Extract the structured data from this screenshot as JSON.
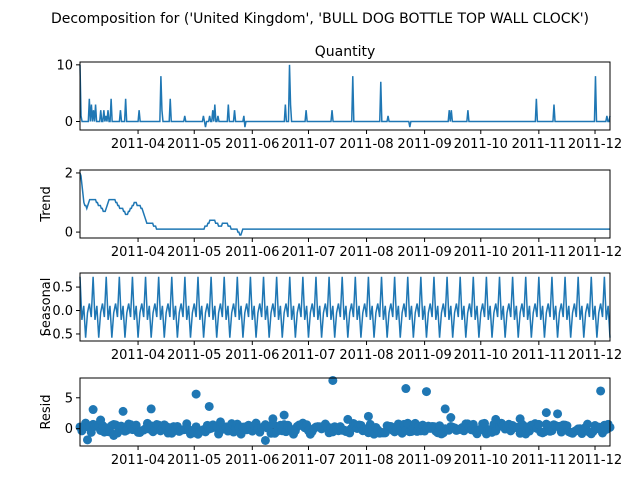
{
  "figure": {
    "suptitle": "Decomposition for ('United Kingdom', 'BULL DOG BOTTLE TOP WALL CLOCK')"
  },
  "colors": {
    "line": "#1f77b4",
    "axis": "#000000",
    "zero_line": "#000000"
  },
  "chart_data": [
    {
      "type": "line",
      "title": "Quantity",
      "ylabel": "",
      "x_start": "2011-03-01",
      "x_end": "2011-12-09",
      "xlim": [
        "2011-03-01",
        "2011-12-09"
      ],
      "ylim": [
        -1.5,
        10.5
      ],
      "yticks": [
        "0",
        "10"
      ],
      "xticks": [
        "2011-04",
        "2011-05",
        "2011-06",
        "2011-07",
        "2011-08",
        "2011-09",
        "2011-10",
        "2011-11",
        "2011-12"
      ],
      "grid": false,
      "values": [
        10,
        1,
        0,
        0,
        0,
        0,
        0,
        0,
        0,
        4,
        0,
        3,
        0,
        2,
        0,
        3,
        0,
        0,
        0,
        0,
        2,
        0,
        0,
        2,
        0,
        1,
        0,
        2,
        0,
        0,
        4,
        0,
        0,
        0,
        0,
        0,
        0,
        0,
        0,
        2,
        0,
        0,
        0,
        0,
        4,
        0,
        0,
        0,
        0,
        0,
        0,
        0,
        0,
        0,
        0,
        0,
        0,
        2,
        0,
        0,
        0,
        0,
        0,
        0,
        0,
        0,
        0,
        0,
        0,
        0,
        0,
        0,
        0,
        0,
        0,
        0,
        0,
        0,
        8,
        2,
        0,
        0,
        0,
        0,
        0,
        0,
        0,
        4,
        0,
        0,
        0,
        0,
        0,
        0,
        0,
        0,
        0,
        0,
        0,
        0,
        0,
        1,
        0,
        0,
        0,
        0,
        0,
        0,
        0,
        0,
        0,
        0,
        0,
        0,
        0,
        0,
        0,
        0,
        0,
        1,
        0,
        -1,
        0,
        0,
        0,
        1,
        0,
        0,
        2,
        0,
        3,
        0,
        0,
        1,
        0,
        0,
        0,
        0,
        0,
        0,
        0,
        0,
        0,
        3,
        0,
        0,
        0,
        0,
        0,
        2,
        0,
        0,
        0,
        0,
        0,
        0,
        0,
        0,
        1,
        -1,
        0,
        0,
        0,
        0,
        0,
        0,
        0,
        0,
        0,
        0,
        0,
        0,
        0,
        0,
        0,
        0,
        0,
        0,
        0,
        0,
        0,
        0,
        0,
        0,
        0,
        0,
        0,
        0,
        0,
        0,
        0,
        0,
        0,
        0,
        0,
        0,
        0,
        0,
        3,
        0,
        0,
        0,
        10,
        3,
        0,
        0,
        0,
        0,
        0,
        0,
        0,
        0,
        0,
        0,
        0,
        0,
        0,
        0,
        2,
        0,
        0,
        0,
        0,
        0,
        0,
        0,
        0,
        0,
        0,
        0,
        0,
        0,
        0,
        0,
        0,
        0,
        0,
        0,
        0,
        0,
        0,
        0,
        0,
        2,
        0,
        0,
        0,
        0,
        0,
        0,
        0,
        0,
        0,
        0,
        0,
        0,
        0,
        0,
        0,
        0,
        0,
        0,
        0,
        8,
        0,
        0,
        0,
        0,
        0,
        0,
        0,
        0,
        0,
        0,
        0,
        0,
        0,
        0,
        0,
        0,
        0,
        0,
        0,
        0,
        0,
        0,
        0,
        0,
        0,
        0,
        7,
        0,
        0,
        0,
        0,
        0,
        0,
        1,
        0,
        0,
        0,
        0,
        0,
        0,
        0,
        0,
        0,
        0,
        0,
        0,
        0,
        0,
        0,
        0,
        0,
        0,
        0,
        0,
        -1,
        0,
        0,
        0,
        0,
        0,
        0,
        0,
        0,
        0,
        0,
        0,
        0,
        0,
        0,
        0,
        0,
        0,
        0,
        0,
        0,
        0,
        0,
        0,
        0,
        0,
        0,
        0,
        0,
        0,
        0,
        0,
        0,
        0,
        0,
        0,
        0,
        0,
        2,
        0,
        2,
        0,
        0,
        0,
        0,
        0,
        0,
        0,
        0,
        0,
        0,
        0,
        0,
        0,
        0,
        0,
        2,
        0,
        0,
        0,
        0,
        0,
        0,
        0,
        0,
        0,
        0,
        0,
        0,
        0,
        0,
        0,
        0,
        0,
        0,
        0,
        0,
        0,
        0,
        0,
        0,
        0,
        0,
        0,
        0,
        0,
        0,
        0,
        0,
        0,
        0,
        0,
        0,
        0,
        0,
        0,
        0,
        0,
        0,
        0,
        0,
        0,
        0,
        0,
        0,
        0,
        0,
        0,
        0,
        0,
        0,
        0,
        0,
        0,
        0,
        0,
        0,
        0,
        0,
        0,
        0,
        0,
        4,
        0,
        0,
        0,
        0,
        0,
        0,
        0,
        0,
        0,
        0,
        0,
        0,
        0,
        0,
        0,
        0,
        3,
        0,
        0,
        0,
        0,
        0,
        0,
        0,
        0,
        0,
        0,
        0,
        0,
        0,
        0,
        0,
        0,
        0,
        0,
        0,
        0,
        0,
        0,
        0,
        0,
        0,
        0,
        0,
        0,
        0,
        0,
        0,
        0,
        0,
        0,
        0,
        0,
        0,
        0,
        0,
        8,
        0,
        0,
        0,
        0,
        0,
        0,
        0,
        0,
        0,
        0,
        1,
        0,
        0,
        1
      ]
    },
    {
      "type": "line",
      "title": "",
      "ylabel": "Trend",
      "x_start": "2011-03-01",
      "x_end": "2011-12-09",
      "xlim": [
        "2011-03-01",
        "2011-12-09"
      ],
      "ylim": [
        -0.2,
        2.1
      ],
      "yticks": [
        "0",
        "2"
      ],
      "xticks": [
        "2011-04",
        "2011-05",
        "2011-06",
        "2011-07",
        "2011-08",
        "2011-09",
        "2011-10",
        "2011-11",
        "2011-12"
      ],
      "grid": false,
      "values": [
        2,
        1.9,
        1.6,
        1.3,
        1,
        0.9,
        0.9,
        0.8,
        0.9,
        1,
        1.1,
        1.1,
        1.1,
        1.1,
        1.1,
        1.1,
        1.1,
        1,
        1,
        0.9,
        0.9,
        0.9,
        0.8,
        0.8,
        0.7,
        0.7,
        0.7,
        0.8,
        0.9,
        1,
        1.1,
        1.1,
        1.1,
        1.1,
        1.1,
        1.1,
        1.1,
        1,
        1,
        0.9,
        0.9,
        0.8,
        0.8,
        0.8,
        0.8,
        0.7,
        0.7,
        0.6,
        0.6,
        0.6,
        0.7,
        0.7,
        0.8,
        0.8,
        0.9,
        0.9,
        1,
        1,
        1,
        0.9,
        0.9,
        0.9,
        0.9,
        0.8,
        0.8,
        0.7,
        0.6,
        0.5,
        0.4,
        0.3,
        0.3,
        0.3,
        0.3,
        0.3,
        0.3,
        0.3,
        0.2,
        0.2,
        0.2,
        0.1,
        0.1,
        0.1,
        0.1,
        0.1,
        0.1,
        0.1,
        0.1,
        0.1,
        0.1,
        0.1,
        0.1,
        0.1,
        0.1,
        0.1,
        0.1,
        0.1,
        0.1,
        0.1,
        0.1,
        0.1,
        0.1,
        0.1,
        0.1,
        0.1,
        0.1,
        0.1,
        0.1,
        0.1,
        0.1,
        0.1,
        0.1,
        0.1,
        0.1,
        0.1,
        0.1,
        0.1,
        0.1,
        0.1,
        0.1,
        0.1,
        0.1,
        0.1,
        0.1,
        0.1,
        0.1,
        0.1,
        0.1,
        0.1,
        0.1,
        0.2,
        0.2,
        0.2,
        0.3,
        0.3,
        0.4,
        0.4,
        0.4,
        0.4,
        0.4,
        0.4,
        0.3,
        0.3,
        0.3,
        0.2,
        0.2,
        0.2,
        0.2,
        0.3,
        0.3,
        0.3,
        0.3,
        0.3,
        0.3,
        0.2,
        0.2,
        0.2,
        0.1,
        0.1,
        0.1,
        0.1,
        0.1,
        0.1,
        0.1,
        0,
        0,
        -0.1,
        -0.1,
        0,
        0.1,
        0.1,
        0.1,
        0.1,
        0.1,
        0.1,
        0.1,
        0.1,
        0.1,
        0.1,
        0.1,
        0.1,
        0.1,
        0.1,
        0.1,
        0.1,
        0.1,
        0.1,
        0.1,
        0.1,
        0.1,
        0.1,
        0.1,
        0.1,
        0.1,
        0.1,
        0.1,
        0.1,
        0.1,
        0.1,
        0.1,
        0.1,
        0.1,
        0.1,
        0.1,
        0.1,
        0.1,
        0.1,
        0.1,
        0.1,
        0.1,
        0.1,
        0.1,
        0.1,
        0.1,
        0.1,
        0.1,
        0.1,
        0.1,
        0.1,
        0.1,
        0.1,
        0.1,
        0.1,
        0.1,
        0.1,
        0.1,
        0.1,
        0.1,
        0.1,
        0.1,
        0.1,
        0.1,
        0.1,
        0.1,
        0.1,
        0.1,
        0.1,
        0.1,
        0.1,
        0.1,
        0.1,
        0.1,
        0.1,
        0.1,
        0.1,
        0.1,
        0.1,
        0.1,
        0.1,
        0.1,
        0.1,
        0.1,
        0.1,
        0.1,
        0.1,
        0.1,
        0.1,
        0.1,
        0.1,
        0.1,
        0.1,
        0.1,
        0.1,
        0.1,
        0.1,
        0.1,
        0.1,
        0.1,
        0.1,
        0.1,
        0.1,
        0.1,
        0.1,
        0.1,
        0.1,
        0.1,
        0.1,
        0.1,
        0.1,
        0.1,
        0.1,
        0.1,
        0.1,
        0.1,
        0.1,
        0.1,
        0.1,
        0.1,
        0.1,
        0.1,
        0.1,
        0.1,
        0.1,
        0.1,
        0.1,
        0.1,
        0.1,
        0.1,
        0.1,
        0.1,
        0.1,
        0.1,
        0.1,
        0.1,
        0.1,
        0.1,
        0.1,
        0.1,
        0.1,
        0.1,
        0.1,
        0.1,
        0.1,
        0.1,
        0.1,
        0.1,
        0.1,
        0.1,
        0.1,
        0.1,
        0.1,
        0.1,
        0.1,
        0.1,
        0.1,
        0.1,
        0.1,
        0.1,
        0.1,
        0.1,
        0.1,
        0.1,
        0.1,
        0.1,
        0.1,
        0.1,
        0.1,
        0.1,
        0.1,
        0.1,
        0.1,
        0.1,
        0.1,
        0.1,
        0.1,
        0.1,
        0.1,
        0.1,
        0.1,
        0.1,
        0.1,
        0.1,
        0.1,
        0.1,
        0.1,
        0.1,
        0.1,
        0.1,
        0.1,
        0.1,
        0.1,
        0.1,
        0.1,
        0.1,
        0.1,
        0.1,
        0.1,
        0.1,
        0.1,
        0.1,
        0.1,
        0.1,
        0.1,
        0.1,
        0.1,
        0.1,
        0.1,
        0.1,
        0.1,
        0.1,
        0.1,
        0.1,
        0.1,
        0.1,
        0.1,
        0.1,
        0.1,
        0.1,
        0.1,
        0.1,
        0.1,
        0.1,
        0.1,
        0.1,
        0.1,
        0.1,
        0.1,
        0.1,
        0.1,
        0.1,
        0.1,
        0.1,
        0.1,
        0.1,
        0.1,
        0.1,
        0.1,
        0.1,
        0.1,
        0.1,
        0.1,
        0.1,
        0.1,
        0.1,
        0.1,
        0.1,
        0.1,
        0.1,
        0.1,
        0.1,
        0.1,
        0.1,
        0.1,
        0.1,
        0.1,
        0.1,
        0.1,
        0.1,
        0.1,
        0.1,
        0.1,
        0.1,
        0.1,
        0.1,
        0.1,
        0.1,
        0.1,
        0.1,
        0.1,
        0.1,
        0.1,
        0.1,
        0.1,
        0.1,
        0.1,
        0.1,
        0.1,
        0.1,
        0.1,
        0.1,
        0.1,
        0.1,
        0.1,
        0.1,
        0.1,
        0.1,
        0.1,
        0.1,
        0.1,
        0.1,
        0.1,
        0.1,
        0.1,
        0.1,
        0.1,
        0.1,
        0.1,
        0.1,
        0.1,
        0.1,
        0.1,
        0.1,
        0.1,
        0.1,
        0.1,
        0.1,
        0.1,
        0.1,
        0.1,
        0.1,
        0.1,
        0.1,
        0.1,
        0.1,
        0.1,
        0.1,
        0.1,
        0.1,
        0.1,
        0.1,
        0.1,
        0.1,
        0.1,
        0.1,
        0.1,
        0.1,
        0.1,
        0.1,
        0.1,
        0.1,
        0.1,
        0.1,
        0.1,
        0.1,
        0.1,
        0.1,
        0.1,
        0.1,
        0.1,
        0.1,
        0.1,
        0.1,
        0.1,
        0.1,
        0.1,
        0.1,
        0.1,
        0.1,
        0.1,
        0.1,
        0.1,
        0.1,
        0.1,
        0.1,
        0.1,
        0.1,
        0.1,
        0.1,
        0.1,
        0.1,
        0.1,
        0.1,
        0.1,
        0.1,
        0.1,
        0.1,
        0.1,
        0.1,
        0.1,
        0.1,
        0.1,
        0.1,
        0.1,
        0.1,
        0.1,
        0.1,
        0.1,
        0.1,
        0.1
      ]
    },
    {
      "type": "line",
      "title": "",
      "ylabel": "Seasonal",
      "x_start": "2011-03-01",
      "x_end": "2011-12-09",
      "xlim": [
        "2011-03-01",
        "2011-12-09"
      ],
      "ylim": [
        -0.65,
        0.8
      ],
      "yticks": [
        "0.5",
        "0.0",
        "−0.5"
      ],
      "ytick_values": [
        0.5,
        0.0,
        -0.5
      ],
      "xticks": [
        "2011-04",
        "2011-05",
        "2011-06",
        "2011-07",
        "2011-08",
        "2011-09",
        "2011-10",
        "2011-11",
        "2011-12"
      ],
      "grid": false,
      "period": 7,
      "pattern": [
        0.72,
        -0.2,
        0.1,
        -0.58,
        -0.05,
        0.15,
        -0.14
      ]
    },
    {
      "type": "scatter",
      "title": "",
      "ylabel": "Resid",
      "x_start": "2011-03-01",
      "x_end": "2011-12-09",
      "xlim": [
        "2011-03-01",
        "2011-12-09"
      ],
      "ylim": [
        -2.8,
        8.2
      ],
      "yticks": [
        "5",
        "0"
      ],
      "ytick_values": [
        5,
        0
      ],
      "xticks": [
        "2011-04",
        "2011-05",
        "2011-06",
        "2011-07",
        "2011-08",
        "2011-09",
        "2011-10",
        "2011-11",
        "2011-12"
      ],
      "grid": false,
      "zero_line": true,
      "outliers": [
        {
          "date": "2011-03-05",
          "value": -1.8
        },
        {
          "date": "2011-03-08",
          "value": 3.1
        },
        {
          "date": "2011-03-12",
          "value": 1.4
        },
        {
          "date": "2011-03-19",
          "value": -1.1
        },
        {
          "date": "2011-03-24",
          "value": 2.8
        },
        {
          "date": "2011-04-08",
          "value": 3.2
        },
        {
          "date": "2011-05-02",
          "value": 5.6
        },
        {
          "date": "2011-05-09",
          "value": 3.6
        },
        {
          "date": "2011-05-15",
          "value": 1.1
        },
        {
          "date": "2011-06-08",
          "value": -1.9
        },
        {
          "date": "2011-06-12",
          "value": 1.6
        },
        {
          "date": "2011-06-18",
          "value": 2.2
        },
        {
          "date": "2011-07-14",
          "value": 7.8
        },
        {
          "date": "2011-07-22",
          "value": 1.5
        },
        {
          "date": "2011-08-02",
          "value": 2.0
        },
        {
          "date": "2011-08-22",
          "value": 6.5
        },
        {
          "date": "2011-09-02",
          "value": 6.0
        },
        {
          "date": "2011-09-12",
          "value": 3.2
        },
        {
          "date": "2011-09-15",
          "value": 1.8
        },
        {
          "date": "2011-10-09",
          "value": 1.5
        },
        {
          "date": "2011-10-22",
          "value": 1.6
        },
        {
          "date": "2011-11-05",
          "value": 2.6
        },
        {
          "date": "2011-11-11",
          "value": 2.4
        },
        {
          "date": "2011-12-04",
          "value": 6.1
        },
        {
          "date": "2011-12-08",
          "value": 0.7
        }
      ],
      "noise_amplitude": 0.9
    }
  ]
}
